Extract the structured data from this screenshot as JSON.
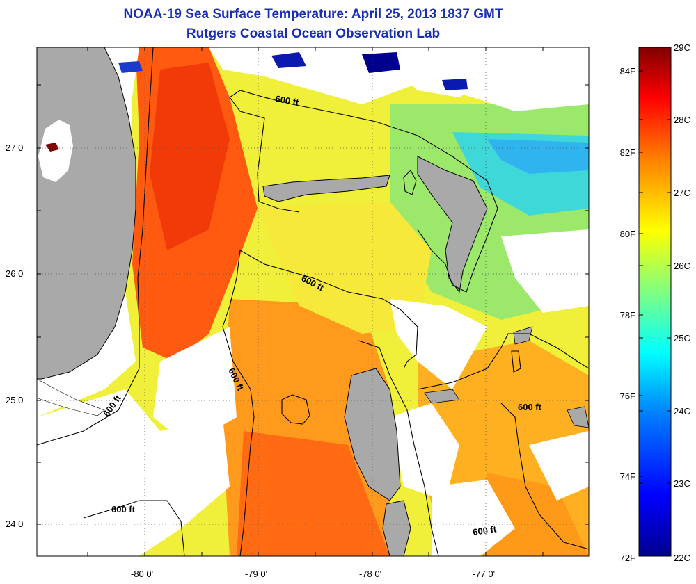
{
  "title": "NOAA-19 Sea Surface Temperature:  April 25, 2013 1837 GMT",
  "subtitle": "Rutgers Coastal Ocean Observation Lab",
  "axes": {
    "x_ticks": [
      "-80 0'",
      "-79 0'",
      "-78 0'",
      "-77 0'"
    ],
    "y_ticks": [
      "27 0'",
      "26 0'",
      "25 0'",
      "24 0'"
    ]
  },
  "contours": {
    "label": "600 ft"
  },
  "colorbar": {
    "celsius_labels": [
      "29C",
      "28C",
      "27C",
      "26C",
      "25C",
      "24C",
      "23C",
      "22C"
    ],
    "fahrenheit_labels": [
      "84F",
      "82F",
      "80F",
      "78F",
      "76F",
      "74F",
      "72F"
    ],
    "colors": [
      "#00008f",
      "#0000ff",
      "#0080ff",
      "#00ffff",
      "#80ff80",
      "#ffff00",
      "#ff8000",
      "#ff0000",
      "#800000"
    ]
  },
  "colors": {
    "land": "#a9a9a9",
    "cloud": "#ffffff",
    "title": "#1a2fb0"
  }
}
